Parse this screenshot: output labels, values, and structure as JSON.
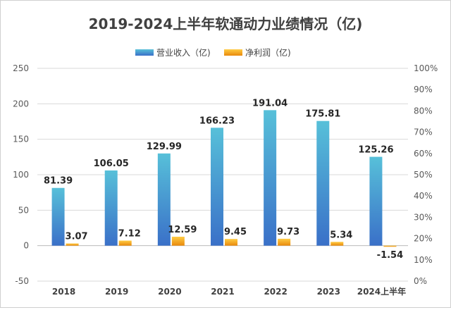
{
  "chart_data": {
    "type": "bar",
    "title": "2019-2024上半年软通动力业绩情况（亿)",
    "categories": [
      "2018",
      "2019",
      "2020",
      "2021",
      "2022",
      "2023",
      "2024上半年"
    ],
    "series": [
      {
        "name": "营业收入（亿)",
        "values": [
          81.39,
          106.05,
          129.99,
          166.23,
          191.04,
          175.81,
          125.26
        ],
        "color": "#3a86c8"
      },
      {
        "name": "净利润（亿)",
        "values": [
          3.07,
          7.12,
          12.59,
          9.45,
          9.73,
          5.34,
          -1.54
        ],
        "color": "#f39c12"
      }
    ],
    "ylim": [
      -50,
      250
    ],
    "yticks": [
      -50,
      0,
      50,
      100,
      150,
      200,
      250
    ],
    "y2lim": [
      0,
      100
    ],
    "y2ticks": [
      "0%",
      "10%",
      "20%",
      "30%",
      "40%",
      "50%",
      "60%",
      "70%",
      "80%",
      "90%",
      "100%"
    ],
    "grid": true,
    "legend": "top-center",
    "data_labels": {
      "revenue": [
        "81.39",
        "106.05",
        "129.99",
        "166.23",
        "191.04",
        "175.81",
        "125.26"
      ],
      "profit": [
        "3.07",
        "7.12",
        "12.59",
        "9.45",
        "9.73",
        "5.34",
        "-1.54"
      ]
    }
  }
}
